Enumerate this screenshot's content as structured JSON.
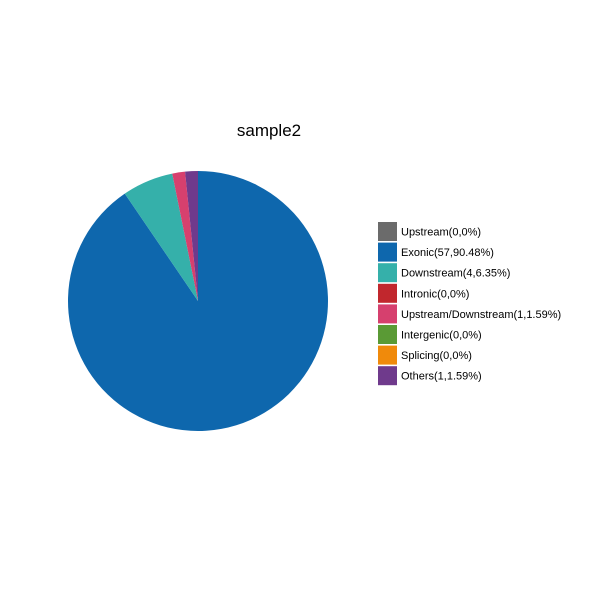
{
  "chart_data": {
    "type": "pie",
    "title": "sample2",
    "legend_position": "right",
    "start_angle": "top",
    "direction": "clockwise",
    "slices": [
      {
        "label": "Upstream(0,0%)",
        "category": "Upstream",
        "count": 0,
        "percent": 0,
        "color": "#6b6b6b"
      },
      {
        "label": "Exonic(57,90.48%)",
        "category": "Exonic",
        "count": 57,
        "percent": 90.48,
        "color": "#0e67ad"
      },
      {
        "label": "Downstream(4,6.35%)",
        "category": "Downstream",
        "count": 4,
        "percent": 6.35,
        "color": "#35b0aa"
      },
      {
        "label": "Intronic(0,0%)",
        "category": "Intronic",
        "count": 0,
        "percent": 0,
        "color": "#c1272d"
      },
      {
        "label": "Upstream/Downstream(1,1.59%)",
        "category": "Upstream/Downstream",
        "count": 1,
        "percent": 1.59,
        "color": "#d6406e"
      },
      {
        "label": "Intergenic(0,0%)",
        "category": "Intergenic",
        "count": 0,
        "percent": 0,
        "color": "#5a9a35"
      },
      {
        "label": "Splicing(0,0%)",
        "category": "Splicing",
        "count": 0,
        "percent": 0,
        "color": "#f08a0b"
      },
      {
        "label": "Others(1,1.59%)",
        "category": "Others",
        "count": 1,
        "percent": 1.59,
        "color": "#6f3a8c"
      }
    ]
  }
}
